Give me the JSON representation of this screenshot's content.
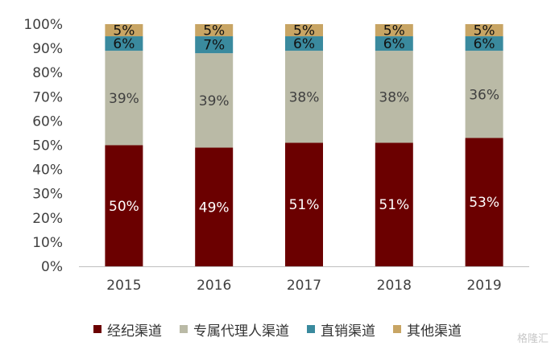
{
  "chart_data": {
    "type": "bar",
    "stacked": true,
    "categories": [
      "2015",
      "2016",
      "2017",
      "2018",
      "2019"
    ],
    "series": [
      {
        "name": "经纪渠道",
        "color": "#6B0000",
        "label_color": "#ffffff",
        "values": [
          50,
          49,
          51,
          51,
          53
        ]
      },
      {
        "name": "专属代理人渠道",
        "color": "#BABAA6",
        "label_color": "#404040",
        "values": [
          39,
          39,
          38,
          38,
          36
        ]
      },
      {
        "name": "直销渠道",
        "color": "#3A8A9E",
        "label_color": "#111111",
        "values": [
          6,
          7,
          6,
          6,
          6
        ]
      },
      {
        "name": "其他渠道",
        "color": "#C8A564",
        "label_color": "#111111",
        "values": [
          5,
          5,
          5,
          5,
          5
        ]
      }
    ],
    "ylim": [
      0,
      100
    ],
    "yticks": [
      "0%",
      "10%",
      "20%",
      "30%",
      "40%",
      "50%",
      "60%",
      "70%",
      "80%",
      "90%",
      "100%"
    ],
    "value_suffix": "%",
    "legend_position": "bottom",
    "grid": false
  },
  "watermark": "格隆汇"
}
